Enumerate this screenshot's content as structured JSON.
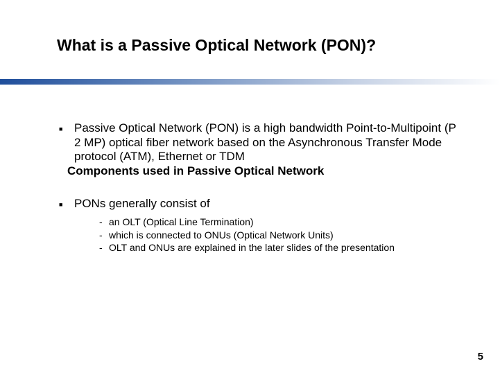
{
  "slide": {
    "title": "What is a Passive Optical Network (PON)?",
    "title_fontsize": 23,
    "title_fontweight": "bold",
    "divider": {
      "height": 8,
      "gradient_colors": [
        "#1f4e9b",
        "#6f8fc0",
        "#c4d0e4",
        "#ffffff"
      ],
      "gradient_stops": [
        0,
        35,
        70,
        100
      ]
    },
    "body_fontsize": 17,
    "sub_fontsize": 14,
    "bullets": [
      {
        "text": "Passive Optical Network (PON) is a high bandwidth Point-to-Multipoint (P 2 MP) optical fiber network based on the Asynchronous Transfer Mode protocol (ATM), Ethernet or TDM",
        "sub_heading": "Components used in Passive Optical Network"
      },
      {
        "text": "PONs generally consist of",
        "sub_items": [
          "an OLT (Optical Line Termination)",
          "which is connected to ONUs (Optical Network Units)",
          "OLT and ONUs are explained in the later slides of the presentation"
        ]
      }
    ],
    "page_number": "5",
    "page_number_fontsize": 15,
    "text_color": "#000000",
    "background_color": "#ffffff"
  }
}
